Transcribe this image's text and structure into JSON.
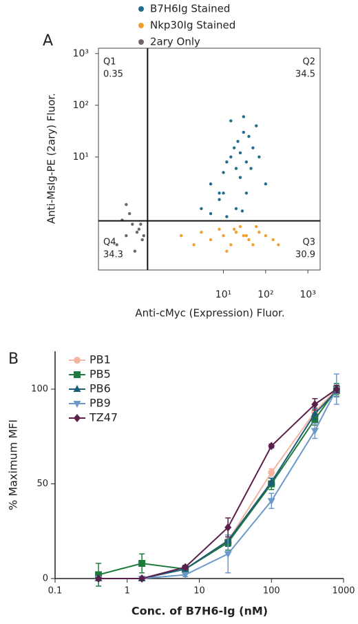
{
  "chart_data": [
    {
      "type": "scatter",
      "panel": "A",
      "xlabel": "Anti-cMyc (Expression) Fluor.",
      "ylabel": "Anti-MsIg-PE (2ary) Fluor.",
      "xscale": "log",
      "yscale": "log",
      "xlim": [
        0.011,
        1950
      ],
      "ylim": [
        0.065,
        1270
      ],
      "xticks": [
        {
          "value": 10,
          "label": "10¹"
        },
        {
          "value": 100,
          "label": "10²"
        },
        {
          "value": 1000,
          "label": "10³"
        }
      ],
      "yticks": [
        {
          "value": 10,
          "label": "10¹"
        },
        {
          "value": 100,
          "label": "10²"
        },
        {
          "value": 1000,
          "label": "10³"
        }
      ],
      "gate": {
        "x": 0.16,
        "y": 0.58
      },
      "quadrants": [
        {
          "name": "Q1",
          "value": 0.35
        },
        {
          "name": "Q2",
          "value": 34.5
        },
        {
          "name": "Q4",
          "value": 34.3
        },
        {
          "name": "Q3",
          "value": 30.9
        }
      ],
      "series": [
        {
          "name": "B7H6Ig Stained",
          "color": "#1f6e8c",
          "x": [
            3,
            5,
            8,
            10,
            12,
            15,
            18,
            20,
            22,
            25,
            30,
            35,
            40,
            50,
            60,
            70,
            15,
            25,
            10,
            30,
            45,
            8,
            20,
            35,
            100,
            5,
            12,
            28
          ],
          "values": [
            1,
            3,
            2,
            5,
            8,
            10,
            15,
            6,
            20,
            12,
            30,
            8,
            25,
            15,
            40,
            10,
            50,
            4,
            2,
            60,
            6,
            1.5,
            1,
            2,
            3,
            0.8,
            0.7,
            0.9
          ]
        },
        {
          "name": "Nkp30Ig Stained",
          "color": "#f0a030",
          "x": [
            1,
            2,
            3,
            5,
            8,
            10,
            15,
            20,
            25,
            30,
            40,
            50,
            70,
            100,
            150,
            200,
            12,
            18,
            35,
            60
          ],
          "values": [
            0.3,
            0.2,
            0.35,
            0.25,
            0.4,
            0.3,
            0.2,
            0.35,
            0.45,
            0.3,
            0.25,
            0.2,
            0.35,
            0.3,
            0.25,
            0.2,
            0.15,
            0.4,
            0.3,
            0.45
          ]
        },
        {
          "name": "2ary Only",
          "color": "#6e6666",
          "x": [
            0.03,
            0.05,
            0.07,
            0.1,
            0.12,
            0.04,
            0.08,
            0.06,
            0.09,
            0.11,
            0.05,
            0.13
          ],
          "values": [
            0.2,
            0.3,
            0.5,
            0.4,
            0.25,
            0.6,
            0.15,
            0.8,
            0.35,
            0.5,
            1.2,
            0.3
          ]
        }
      ]
    },
    {
      "type": "line",
      "panel": "B",
      "xlabel": "Conc. of B7H6-Ig (nM)",
      "ylabel": "% Maximum MFI",
      "xscale": "log",
      "xlim": [
        0.1,
        1000
      ],
      "ylim": [
        0,
        120
      ],
      "xticks": [
        0.1,
        1,
        10,
        100,
        1000
      ],
      "yticks": [
        0,
        50,
        100
      ],
      "x": [
        0.4,
        1.6,
        6.4,
        25,
        100,
        400,
        800
      ],
      "series": [
        {
          "name": "PB1",
          "color": "#f4b6a0",
          "marker": "circle",
          "values": [
            0,
            0,
            5,
            20,
            56,
            88,
            100
          ],
          "errors": [
            0,
            0,
            1,
            3,
            2,
            3,
            2
          ]
        },
        {
          "name": "PB5",
          "color": "#1e7a3c",
          "marker": "square",
          "values": [
            2,
            8,
            5,
            19,
            50,
            84,
            100
          ],
          "errors": [
            6,
            5,
            1,
            4,
            3,
            3,
            3
          ]
        },
        {
          "name": "PB6",
          "color": "#1c5e78",
          "marker": "triangle",
          "values": [
            0,
            0,
            5,
            20,
            51,
            87,
            99
          ],
          "errors": [
            0,
            0,
            1,
            3,
            2,
            3,
            3
          ]
        },
        {
          "name": "PB9",
          "color": "#6a98c8",
          "marker": "triangle-down",
          "values": [
            0,
            0,
            2,
            13,
            41,
            78,
            100
          ],
          "errors": [
            0,
            0,
            1,
            10,
            4,
            4,
            8
          ]
        },
        {
          "name": "TZ47",
          "color": "#5a1f4a",
          "marker": "diamond",
          "values": [
            0,
            0,
            6,
            27,
            70,
            92,
            100
          ],
          "errors": [
            0,
            0,
            1,
            5,
            1,
            3,
            2
          ]
        }
      ]
    }
  ]
}
